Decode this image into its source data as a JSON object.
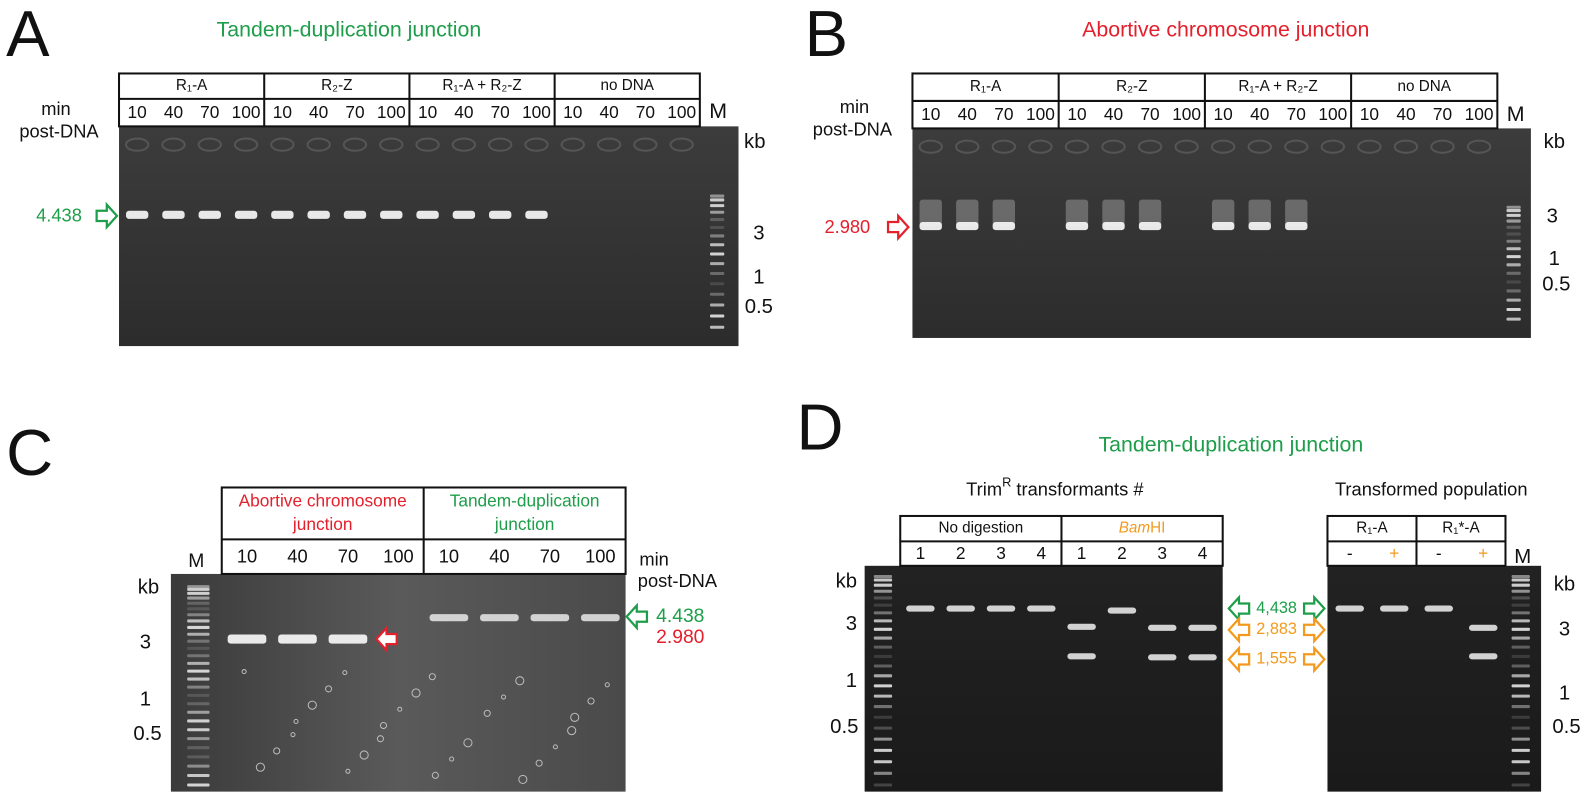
{
  "panels": [
    {
      "letter": "A",
      "title": "Tandem-duplication junction",
      "groups": [
        {
          "label": "R₁-A",
          "lanes": [
            "10",
            "40",
            "70",
            "100"
          ]
        },
        {
          "label": "R₂-Z",
          "lanes": [
            "10",
            "40",
            "70",
            "100"
          ]
        },
        {
          "label": "R₁-A + R₂-Z",
          "lanes": [
            "10",
            "40",
            "70",
            "100"
          ]
        },
        {
          "label": "no DNA",
          "lanes": [
            "10",
            "40",
            "70",
            "100"
          ]
        }
      ],
      "marker": "M",
      "time_label": [
        "min",
        "post-DNA"
      ],
      "size_unit": "kb",
      "size_ticks": [
        "3",
        "1",
        "0.5"
      ],
      "band_labels": [
        "4.438"
      ]
    },
    {
      "letter": "B",
      "title": "Abortive chromosome junction",
      "groups": [
        {
          "label": "R₁-A",
          "lanes": [
            "10",
            "40",
            "70",
            "100"
          ]
        },
        {
          "label": "R₂-Z",
          "lanes": [
            "10",
            "40",
            "70",
            "100"
          ]
        },
        {
          "label": "R₁-A + R₂-Z",
          "lanes": [
            "10",
            "40",
            "70",
            "100"
          ]
        },
        {
          "label": "no DNA",
          "lanes": [
            "10",
            "40",
            "70",
            "100"
          ]
        }
      ],
      "marker": "M",
      "time_label": [
        "min",
        "post-DNA"
      ],
      "size_unit": "kb",
      "size_ticks": [
        "3",
        "1",
        "0.5"
      ],
      "band_labels": [
        "2.980"
      ]
    },
    {
      "letter": "C",
      "groups": [
        {
          "label": [
            "Abortive chromosome",
            "junction"
          ],
          "lanes": [
            "10",
            "40",
            "70",
            "100"
          ]
        },
        {
          "label": [
            "Tandem-duplication",
            "junction"
          ],
          "lanes": [
            "10",
            "40",
            "70",
            "100"
          ]
        }
      ],
      "marker": "M",
      "time_label": [
        "min",
        "post-DNA"
      ],
      "size_unit": "kb",
      "size_ticks": [
        "3",
        "1",
        "0.5"
      ],
      "band_labels": [
        "4.438",
        "2.980"
      ]
    },
    {
      "letter": "D",
      "title": "Tandem-duplication junction",
      "gels": [
        {
          "subtitle": {
            "text": "Trim",
            "sup": "R",
            "rest": " transformants  #"
          },
          "groups": [
            {
              "label": "No digestion",
              "lanes": [
                "1",
                "2",
                "3",
                "4"
              ]
            },
            {
              "label": {
                "italic": "Bam",
                "plain": "HI"
              },
              "lanes": [
                "1",
                "2",
                "3",
                "4"
              ]
            }
          ],
          "size_unit": "kb",
          "size_ticks": [
            "3",
            "1",
            "0.5"
          ]
        },
        {
          "subtitle": "Transformed population",
          "groups": [
            {
              "label": "R₁-A",
              "lanes": [
                "-",
                "+"
              ]
            },
            {
              "label": "R₁*-A",
              "lanes": [
                "-",
                "+"
              ]
            }
          ],
          "marker": "M",
          "size_unit": "kb",
          "size_ticks": [
            "3",
            "1",
            "0.5"
          ]
        }
      ],
      "band_labels": [
        "4,438",
        "2,883",
        "1,555"
      ]
    }
  ]
}
